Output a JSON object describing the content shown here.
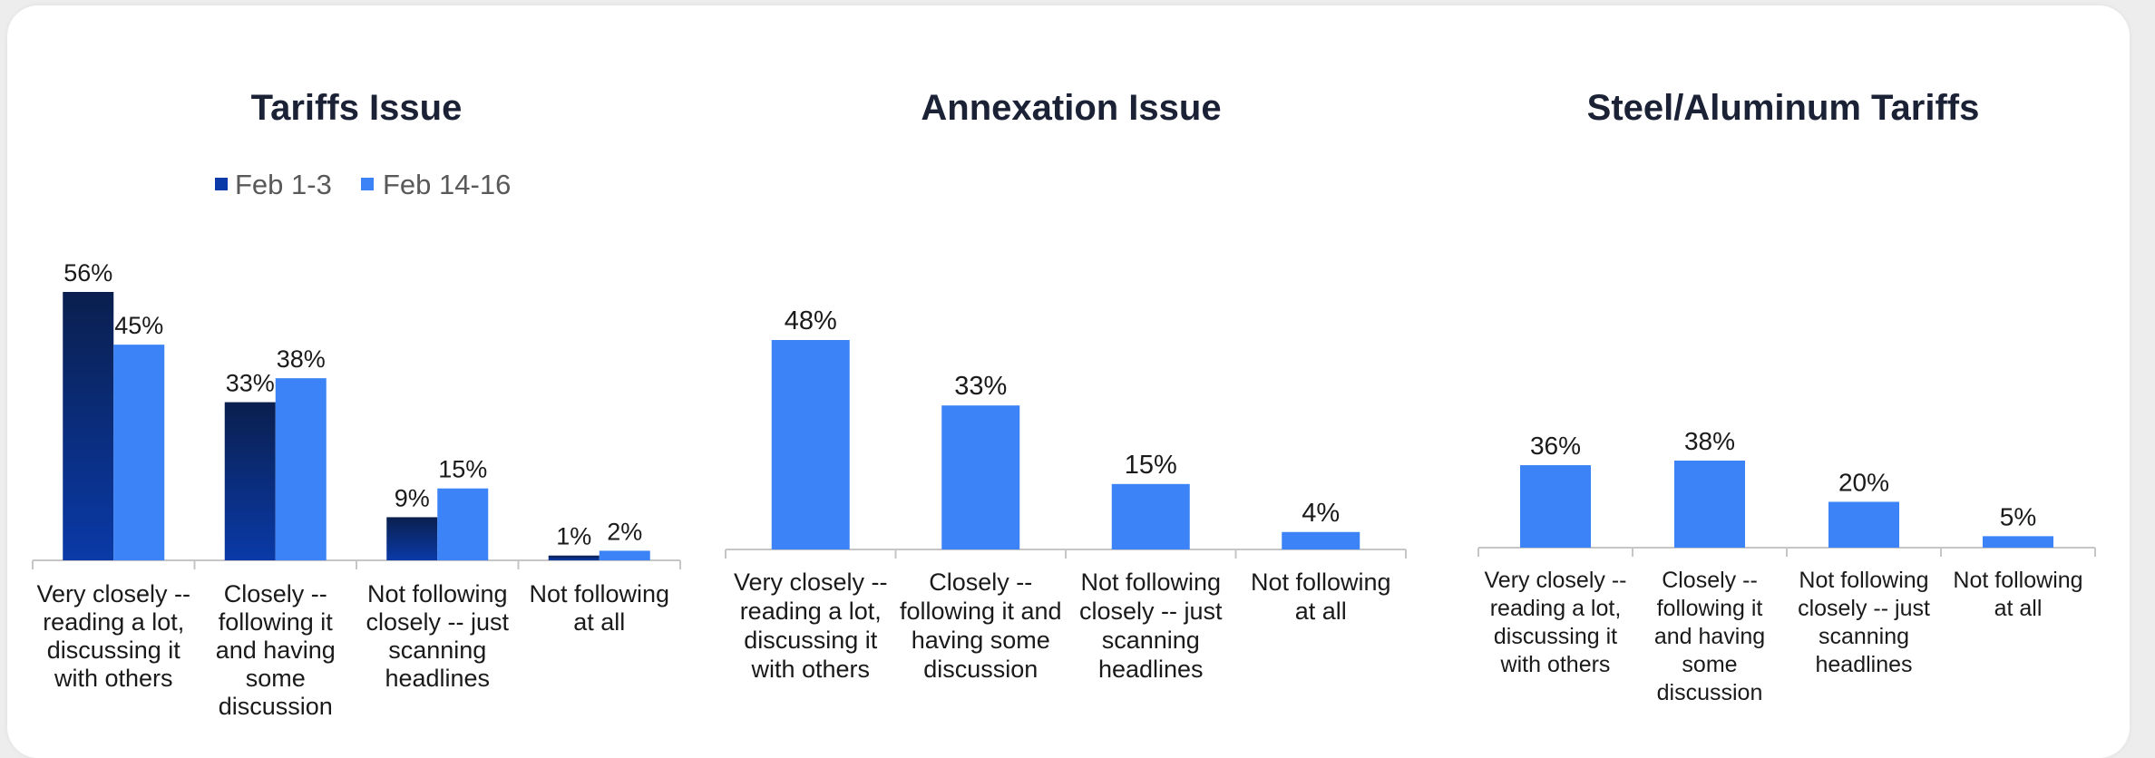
{
  "colors": {
    "series_dark_top": "#0a1f4e",
    "series_dark_bottom": "#0a3aa8",
    "series_light": "#3b83f6",
    "axis": "#c6c6c6"
  },
  "chart_data": [
    {
      "type": "bar",
      "title": "Tariffs Issue",
      "categories": [
        "Very closely -- reading a lot, discussing it with others",
        "Closely -- following it and having some discussion",
        "Not following closely -- just scanning headlines",
        "Not following at all"
      ],
      "category_lines": [
        [
          "Very closely --",
          "reading a lot,",
          "discussing it",
          "with others"
        ],
        [
          "Closely --",
          "following it",
          "and having",
          "some",
          "discussion"
        ],
        [
          "Not following",
          "closely -- just",
          "scanning",
          "headlines"
        ],
        [
          "Not following",
          "at all"
        ]
      ],
      "series": [
        {
          "name": "Feb 1-3",
          "values": [
            56,
            33,
            9,
            1
          ],
          "labels": [
            "56%",
            "33%",
            "9%",
            "1%"
          ]
        },
        {
          "name": "Feb 14-16",
          "values": [
            45,
            38,
            15,
            2
          ],
          "labels": [
            "45%",
            "38%",
            "15%",
            "2%"
          ]
        }
      ],
      "legend_position": "top",
      "ylim": [
        0,
        56
      ],
      "grid": false
    },
    {
      "type": "bar",
      "title": "Annexation Issue",
      "categories": [
        "Very closely -- reading a lot, discussing it with others",
        "Closely -- following it and having some discussion",
        "Not following closely -- just scanning headlines",
        "Not following at all"
      ],
      "category_lines": [
        [
          "Very closely --",
          "reading a lot,",
          "discussing it",
          "with others"
        ],
        [
          "Closely --",
          "following it and",
          "having some",
          "discussion"
        ],
        [
          "Not following",
          "closely -- just",
          "scanning",
          "headlines"
        ],
        [
          "Not following",
          "at all"
        ]
      ],
      "series": [
        {
          "values": [
            48,
            33,
            15,
            4
          ],
          "labels": [
            "48%",
            "33%",
            "15%",
            "4%"
          ]
        }
      ],
      "ylim": [
        0,
        48
      ],
      "grid": false
    },
    {
      "type": "bar",
      "title": "Steel/Aluminum Tariffs",
      "categories": [
        "Very closely -- reading a lot, discussing it with others",
        "Closely -- following it and having some discussion",
        "Not following closely -- just scanning headlines",
        "Not following at all"
      ],
      "category_lines": [
        [
          "Very closely --",
          "reading a lot,",
          "discussing it",
          "with others"
        ],
        [
          "Closely --",
          "following it",
          "and having",
          "some",
          "discussion"
        ],
        [
          "Not following",
          "closely -- just",
          "scanning",
          "headlines"
        ],
        [
          "Not following",
          "at all"
        ]
      ],
      "series": [
        {
          "values": [
            36,
            38,
            20,
            5
          ],
          "labels": [
            "36%",
            "38%",
            "20%",
            "5%"
          ]
        }
      ],
      "ylim": [
        0,
        38
      ],
      "grid": false
    }
  ]
}
